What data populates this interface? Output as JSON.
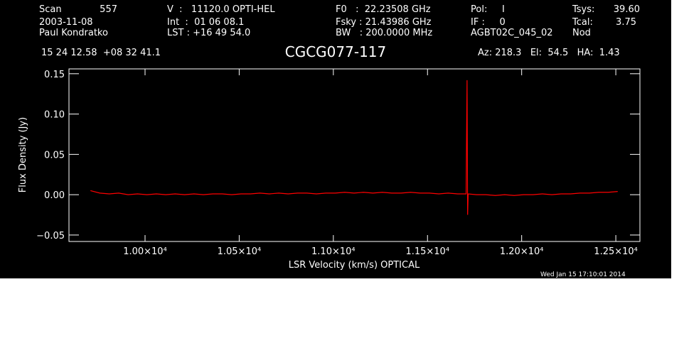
{
  "chart_data": {
    "type": "line",
    "title": "CGCG077-117",
    "annotations": [
      "Scan",
      "557",
      "2003-11-08",
      "Paul Kondratko",
      "V  :   11120.0 OPTI-HEL",
      "Int  :  01 06 08.1",
      "LST : +16 49 54.0",
      "F0   :  22.23508 GHz",
      "Fsky : 21.43986 GHz",
      "BW   : 200.0000 MHz",
      "Pol:     I",
      "IF :     0",
      "AGBT02C_045_02",
      "Tsys:",
      "39.60",
      "Tcal:",
      "3.75",
      "Nod",
      "15 24 12.58  +08 32 41.1",
      "Az: 218.3   El:  54.5   HA:  1.43",
      "Wed Jan 15 17:10:01 2014"
    ],
    "xlabel": "LSR Velocity (km/s) OPTICAL",
    "ylabel": "Flux Density (Jy)",
    "xlim": [
      9596,
      12628
    ],
    "ylim": [
      -0.058,
      0.156
    ],
    "xticks": [
      {
        "value": 10000,
        "label": "1.00×10⁴"
      },
      {
        "value": 10500,
        "label": "1.05×10⁴"
      },
      {
        "value": 11000,
        "label": "1.10×10⁴"
      },
      {
        "value": 11500,
        "label": "1.15×10⁴"
      },
      {
        "value": 12000,
        "label": "1.20×10⁴"
      },
      {
        "value": 12500,
        "label": "1.25×10⁴"
      }
    ],
    "yticks": [
      {
        "value": -0.05,
        "label": "−0.05"
      },
      {
        "value": 0,
        "label": "0.00"
      },
      {
        "value": 0.05,
        "label": "0.05"
      },
      {
        "value": 0.1,
        "label": "0.10"
      },
      {
        "value": 0.15,
        "label": "0.15"
      }
    ],
    "x": [
      9710,
      9760,
      9810,
      9860,
      9910,
      9960,
      10010,
      10060,
      10110,
      10160,
      10210,
      10260,
      10310,
      10360,
      10410,
      10460,
      10510,
      10560,
      10610,
      10660,
      10710,
      10760,
      10810,
      10860,
      10910,
      10960,
      11010,
      11060,
      11110,
      11160,
      11210,
      11260,
      11310,
      11360,
      11410,
      11460,
      11510,
      11560,
      11610,
      11660,
      11705,
      11710,
      11713,
      11716,
      11760,
      11810,
      11860,
      11910,
      11960,
      12010,
      12060,
      12110,
      12160,
      12210,
      12260,
      12310,
      12360,
      12410,
      12460,
      12510
    ],
    "series": [
      {
        "color": "#ff0000",
        "values": [
          0.005,
          0.002,
          0.001,
          0.002,
          0.0,
          0.001,
          0.0,
          0.001,
          0.0,
          0.001,
          0.0,
          0.001,
          0.0,
          0.001,
          0.001,
          0.0,
          0.001,
          0.001,
          0.002,
          0.001,
          0.002,
          0.001,
          0.002,
          0.002,
          0.001,
          0.002,
          0.002,
          0.003,
          0.002,
          0.003,
          0.002,
          0.003,
          0.002,
          0.002,
          0.003,
          0.002,
          0.002,
          0.001,
          0.002,
          0.001,
          0.001,
          0.142,
          -0.025,
          0.001,
          0.0,
          0.0,
          -0.001,
          0.0,
          -0.001,
          0.0,
          0.0,
          0.001,
          0.0,
          0.001,
          0.001,
          0.002,
          0.002,
          0.003,
          0.003,
          0.004
        ]
      }
    ]
  }
}
